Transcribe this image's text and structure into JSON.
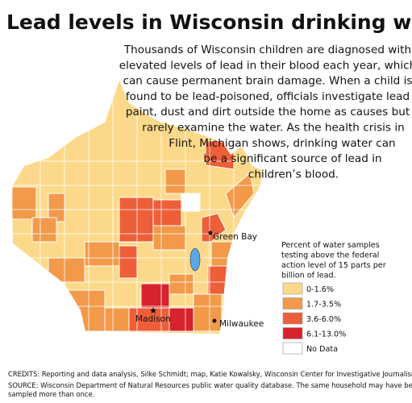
{
  "header": {
    "title": "Lead levels in Wisconsin drinking water"
  },
  "intro": {
    "lines": [
      "Thousands of Wisconsin children are diagnosed with",
      "elevated levels of lead in their blood each year, which",
      "can cause permanent brain damage. When a child is",
      "found to be lead-poisoned, officials investigate lead",
      "paint, dust and dirt outside the home as causes but",
      "rarely examine the water. As the health crisis in",
      "Flint, Michigan shows, drinking water can",
      "be a significant source of lead in",
      "children’s blood."
    ]
  },
  "legend": {
    "title_lines": [
      "Percent of water samples",
      "testing above the federal",
      "action level of 15 parts per",
      "billion of lead."
    ],
    "items": [
      {
        "label": "0-1.6%",
        "color": "#fcd98a"
      },
      {
        "label": "1.7-3.5%",
        "color": "#f29a4a"
      },
      {
        "label": "3.6-6.0%",
        "color": "#ee5e38"
      },
      {
        "label": "6.1-13.0%",
        "color": "#d7232b"
      },
      {
        "label": "No Data",
        "color": "#ffffff"
      }
    ]
  },
  "cities": [
    {
      "label": "Green Bay"
    },
    {
      "label": "Madison"
    },
    {
      "label": "Milwaukee"
    }
  ],
  "footer": {
    "credits": "CREDITS: Reporting and data analysis, Silke Schmidt; map, Katie Kowalsky, Wisconsin Center for Investigative Journalism.",
    "source_lines": [
      "SOURCE: Wisconsin Department of Natural Resources public water quality database. The same household may have been",
      "sampled more than once."
    ]
  }
}
